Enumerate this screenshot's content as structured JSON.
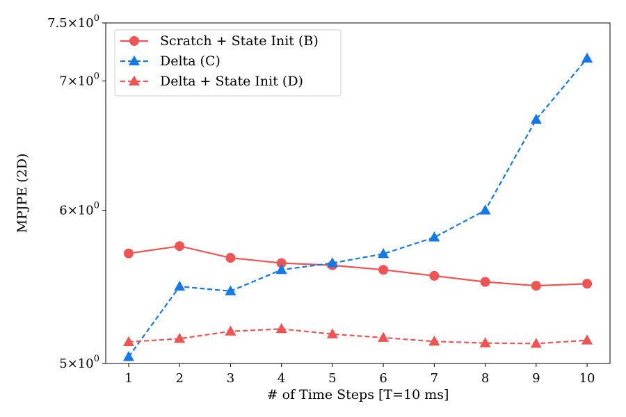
{
  "chart_data": {
    "type": "line",
    "xlabel": "# of Time Steps [T=10 ms]",
    "ylabel": "MPJPE (2D)",
    "x": [
      1,
      2,
      3,
      4,
      5,
      6,
      7,
      8,
      9,
      10
    ],
    "xlim": [
      0.55,
      10.45
    ],
    "ylim": [
      5.0,
      7.5
    ],
    "yscale": "log",
    "x_ticks": [
      1,
      2,
      3,
      4,
      5,
      6,
      7,
      8,
      9,
      10
    ],
    "y_ticks": [
      {
        "value": 5.0,
        "mantissa": "5",
        "base": "10",
        "exp": "0"
      },
      {
        "value": 6.0,
        "mantissa": "6",
        "base": "10",
        "exp": "0"
      },
      {
        "value": 7.0,
        "mantissa": "7",
        "base": "10",
        "exp": "0"
      },
      {
        "value": 7.5,
        "mantissa": "7.5",
        "base": "10",
        "exp": "0"
      }
    ],
    "grid": false,
    "legend_position": "top-left",
    "series": [
      {
        "name": "Scratch + State Init (B)",
        "color": "#ee5454",
        "dash": "solid",
        "marker": "circle",
        "values": [
          5.7,
          5.75,
          5.67,
          5.635,
          5.62,
          5.59,
          5.55,
          5.51,
          5.485,
          5.498
        ]
      },
      {
        "name": "Delta (C)",
        "color": "#1479e6",
        "dash": "dashed",
        "marker": "triangle",
        "values": [
          5.04,
          5.48,
          5.45,
          5.59,
          5.635,
          5.697,
          5.81,
          6.0,
          6.685,
          7.19
        ]
      },
      {
        "name": "Delta + State Init (D)",
        "color": "#ee5454",
        "dash": "dashed",
        "marker": "triangle",
        "values": [
          5.13,
          5.15,
          5.195,
          5.21,
          5.178,
          5.156,
          5.133,
          5.123,
          5.12,
          5.14
        ]
      }
    ]
  }
}
